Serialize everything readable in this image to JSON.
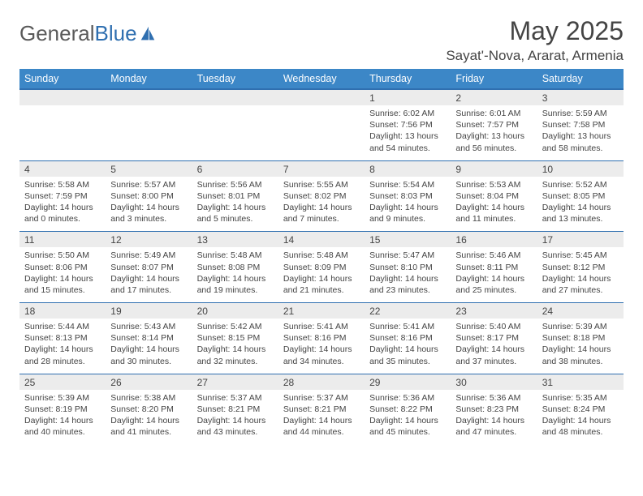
{
  "brand": {
    "text1": "General",
    "text2": "Blue"
  },
  "title": "May 2025",
  "location": "Sayat'-Nova, Ararat, Armenia",
  "colors": {
    "header_bg": "#3c87c7",
    "header_border": "#2f6fb0",
    "daynum_bg": "#ececec",
    "text": "#444444",
    "page_bg": "#ffffff"
  },
  "typography": {
    "title_fontsize": 32,
    "location_fontsize": 17,
    "dayheader_fontsize": 12.5,
    "daynum_fontsize": 12,
    "details_fontsize": 10.5
  },
  "weekdays": [
    "Sunday",
    "Monday",
    "Tuesday",
    "Wednesday",
    "Thursday",
    "Friday",
    "Saturday"
  ],
  "weeks": [
    [
      null,
      null,
      null,
      null,
      {
        "n": "1",
        "sunrise": "Sunrise: 6:02 AM",
        "sunset": "Sunset: 7:56 PM",
        "daylight": "Daylight: 13 hours and 54 minutes."
      },
      {
        "n": "2",
        "sunrise": "Sunrise: 6:01 AM",
        "sunset": "Sunset: 7:57 PM",
        "daylight": "Daylight: 13 hours and 56 minutes."
      },
      {
        "n": "3",
        "sunrise": "Sunrise: 5:59 AM",
        "sunset": "Sunset: 7:58 PM",
        "daylight": "Daylight: 13 hours and 58 minutes."
      }
    ],
    [
      {
        "n": "4",
        "sunrise": "Sunrise: 5:58 AM",
        "sunset": "Sunset: 7:59 PM",
        "daylight": "Daylight: 14 hours and 0 minutes."
      },
      {
        "n": "5",
        "sunrise": "Sunrise: 5:57 AM",
        "sunset": "Sunset: 8:00 PM",
        "daylight": "Daylight: 14 hours and 3 minutes."
      },
      {
        "n": "6",
        "sunrise": "Sunrise: 5:56 AM",
        "sunset": "Sunset: 8:01 PM",
        "daylight": "Daylight: 14 hours and 5 minutes."
      },
      {
        "n": "7",
        "sunrise": "Sunrise: 5:55 AM",
        "sunset": "Sunset: 8:02 PM",
        "daylight": "Daylight: 14 hours and 7 minutes."
      },
      {
        "n": "8",
        "sunrise": "Sunrise: 5:54 AM",
        "sunset": "Sunset: 8:03 PM",
        "daylight": "Daylight: 14 hours and 9 minutes."
      },
      {
        "n": "9",
        "sunrise": "Sunrise: 5:53 AM",
        "sunset": "Sunset: 8:04 PM",
        "daylight": "Daylight: 14 hours and 11 minutes."
      },
      {
        "n": "10",
        "sunrise": "Sunrise: 5:52 AM",
        "sunset": "Sunset: 8:05 PM",
        "daylight": "Daylight: 14 hours and 13 minutes."
      }
    ],
    [
      {
        "n": "11",
        "sunrise": "Sunrise: 5:50 AM",
        "sunset": "Sunset: 8:06 PM",
        "daylight": "Daylight: 14 hours and 15 minutes."
      },
      {
        "n": "12",
        "sunrise": "Sunrise: 5:49 AM",
        "sunset": "Sunset: 8:07 PM",
        "daylight": "Daylight: 14 hours and 17 minutes."
      },
      {
        "n": "13",
        "sunrise": "Sunrise: 5:48 AM",
        "sunset": "Sunset: 8:08 PM",
        "daylight": "Daylight: 14 hours and 19 minutes."
      },
      {
        "n": "14",
        "sunrise": "Sunrise: 5:48 AM",
        "sunset": "Sunset: 8:09 PM",
        "daylight": "Daylight: 14 hours and 21 minutes."
      },
      {
        "n": "15",
        "sunrise": "Sunrise: 5:47 AM",
        "sunset": "Sunset: 8:10 PM",
        "daylight": "Daylight: 14 hours and 23 minutes."
      },
      {
        "n": "16",
        "sunrise": "Sunrise: 5:46 AM",
        "sunset": "Sunset: 8:11 PM",
        "daylight": "Daylight: 14 hours and 25 minutes."
      },
      {
        "n": "17",
        "sunrise": "Sunrise: 5:45 AM",
        "sunset": "Sunset: 8:12 PM",
        "daylight": "Daylight: 14 hours and 27 minutes."
      }
    ],
    [
      {
        "n": "18",
        "sunrise": "Sunrise: 5:44 AM",
        "sunset": "Sunset: 8:13 PM",
        "daylight": "Daylight: 14 hours and 28 minutes."
      },
      {
        "n": "19",
        "sunrise": "Sunrise: 5:43 AM",
        "sunset": "Sunset: 8:14 PM",
        "daylight": "Daylight: 14 hours and 30 minutes."
      },
      {
        "n": "20",
        "sunrise": "Sunrise: 5:42 AM",
        "sunset": "Sunset: 8:15 PM",
        "daylight": "Daylight: 14 hours and 32 minutes."
      },
      {
        "n": "21",
        "sunrise": "Sunrise: 5:41 AM",
        "sunset": "Sunset: 8:16 PM",
        "daylight": "Daylight: 14 hours and 34 minutes."
      },
      {
        "n": "22",
        "sunrise": "Sunrise: 5:41 AM",
        "sunset": "Sunset: 8:16 PM",
        "daylight": "Daylight: 14 hours and 35 minutes."
      },
      {
        "n": "23",
        "sunrise": "Sunrise: 5:40 AM",
        "sunset": "Sunset: 8:17 PM",
        "daylight": "Daylight: 14 hours and 37 minutes."
      },
      {
        "n": "24",
        "sunrise": "Sunrise: 5:39 AM",
        "sunset": "Sunset: 8:18 PM",
        "daylight": "Daylight: 14 hours and 38 minutes."
      }
    ],
    [
      {
        "n": "25",
        "sunrise": "Sunrise: 5:39 AM",
        "sunset": "Sunset: 8:19 PM",
        "daylight": "Daylight: 14 hours and 40 minutes."
      },
      {
        "n": "26",
        "sunrise": "Sunrise: 5:38 AM",
        "sunset": "Sunset: 8:20 PM",
        "daylight": "Daylight: 14 hours and 41 minutes."
      },
      {
        "n": "27",
        "sunrise": "Sunrise: 5:37 AM",
        "sunset": "Sunset: 8:21 PM",
        "daylight": "Daylight: 14 hours and 43 minutes."
      },
      {
        "n": "28",
        "sunrise": "Sunrise: 5:37 AM",
        "sunset": "Sunset: 8:21 PM",
        "daylight": "Daylight: 14 hours and 44 minutes."
      },
      {
        "n": "29",
        "sunrise": "Sunrise: 5:36 AM",
        "sunset": "Sunset: 8:22 PM",
        "daylight": "Daylight: 14 hours and 45 minutes."
      },
      {
        "n": "30",
        "sunrise": "Sunrise: 5:36 AM",
        "sunset": "Sunset: 8:23 PM",
        "daylight": "Daylight: 14 hours and 47 minutes."
      },
      {
        "n": "31",
        "sunrise": "Sunrise: 5:35 AM",
        "sunset": "Sunset: 8:24 PM",
        "daylight": "Daylight: 14 hours and 48 minutes."
      }
    ]
  ]
}
